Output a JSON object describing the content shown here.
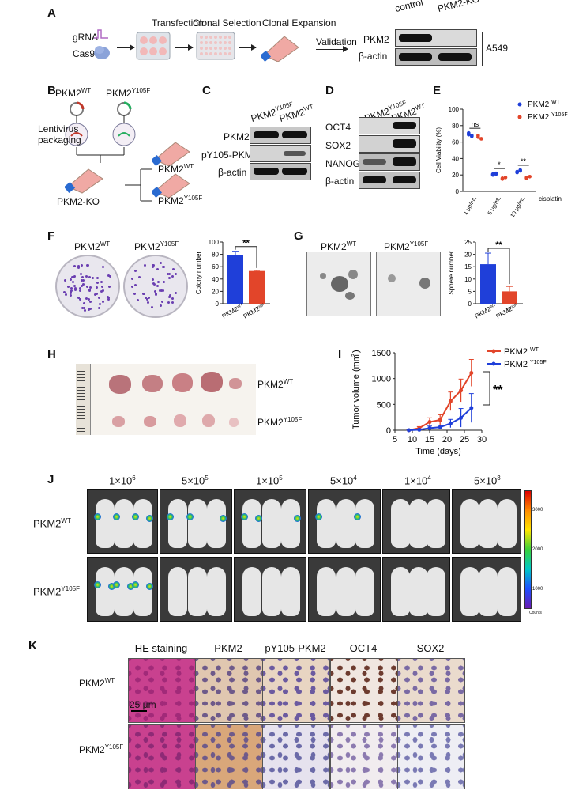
{
  "panels": {
    "A": "A",
    "B": "B",
    "C": "C",
    "D": "D",
    "E": "E",
    "F": "F",
    "G": "G",
    "H": "H",
    "I": "I",
    "J": "J",
    "K": "K"
  },
  "panel_a": {
    "gRNA": "gRNA",
    "cas9": "Cas9",
    "steps": [
      "Transfection",
      "Clonal Selection",
      "Clonal Expansion"
    ],
    "validation": "Validation",
    "lanes": [
      "control",
      "PKM2-KO"
    ],
    "rows": [
      "PKM2",
      "β-actin"
    ],
    "cell_line": "A549"
  },
  "panel_b": {
    "wt": "PKM2",
    "wt_sup": "WT",
    "mut": "PKM2",
    "mut_sup": "Y105F",
    "lentivirus": "Lentivirus",
    "packaging": "packaging",
    "ko": "PKM2-KO"
  },
  "panel_c": {
    "lanes": [
      "PKM2",
      "PKM2"
    ],
    "lane_sups": [
      "Y105F",
      "WT"
    ],
    "rows": [
      "PKM2",
      "pY105-PKM2",
      "β-actin"
    ]
  },
  "panel_d": {
    "lanes": [
      "PKM2",
      "PKM2"
    ],
    "lane_sups": [
      "Y105F",
      "WT"
    ],
    "rows": [
      "OCT4",
      "SOX2",
      "NANOG",
      "β-actin"
    ]
  },
  "panel_f": {
    "wt": "PKM2",
    "wt_sup": "WT",
    "mut": "PKM2",
    "mut_sup": "Y105F",
    "sig": "**"
  },
  "panel_g": {
    "wt": "PKM2",
    "wt_sup": "WT",
    "mut": "PKM2",
    "mut_sup": "Y105F",
    "sig": "**"
  },
  "panel_h": {
    "wt": "PKM2",
    "wt_sup": "WT",
    "mut": "PKM2",
    "mut_sup": "Y105F"
  },
  "panel_i": {
    "sig": "**"
  },
  "panel_j": {
    "doses": [
      "1×10",
      "5×10",
      "1×10",
      "5×10",
      "1×10",
      "5×10"
    ],
    "dose_exps": [
      "6",
      "5",
      "5",
      "4",
      "4",
      "3"
    ],
    "wt": "PKM2",
    "wt_sup": "WT",
    "mut": "PKM2",
    "mut_sup": "Y105F",
    "scale": [
      "3000",
      "2000",
      "1000"
    ],
    "scale_unit": "Counts"
  },
  "panel_k": {
    "columns": [
      "HE staining",
      "PKM2",
      "pY105-PKM2",
      "OCT4",
      "SOX2"
    ],
    "wt": "PKM2",
    "wt_sup": "WT",
    "mut": "PKM2",
    "mut_sup": "Y105F",
    "scalebar": "25 μm"
  },
  "chart_data": [
    {
      "panel": "E",
      "type": "scatter",
      "ylabel": "Cell Viability (%)",
      "ylim": [
        0,
        100
      ],
      "yticks": [
        0,
        20,
        40,
        60,
        80,
        100
      ],
      "categories": [
        "1 μg/mL",
        "5 μg/mL",
        "10 μg/mL"
      ],
      "xsuffix": "cisplatin",
      "series": [
        {
          "name": "PKM2",
          "name_sup": "WT",
          "color": "#1f3fd9",
          "values": [
            [
              69,
              67,
              71,
              68
            ],
            [
              21,
              22,
              20,
              21
            ],
            [
              23,
              25,
              24,
              26
            ]
          ]
        },
        {
          "name": "PKM2",
          "name_sup": "Y105F",
          "color": "#e2452a",
          "values": [
            [
              66,
              64,
              68
            ],
            [
              16,
              17,
              15
            ],
            [
              17,
              18,
              16
            ]
          ]
        }
      ],
      "annotations": [
        "ns",
        "*",
        "**"
      ]
    },
    {
      "panel": "F",
      "type": "bar",
      "ylabel": "Colony number",
      "ylim": [
        0,
        100
      ],
      "yticks": [
        0,
        20,
        40,
        60,
        80,
        100
      ],
      "categories": [
        "PKM2",
        "PKM2"
      ],
      "category_sups": [
        "WT",
        "Y105F"
      ],
      "values": [
        79,
        53
      ],
      "errors": [
        6,
        1
      ],
      "colors": [
        "#1f3fd9",
        "#e2452a"
      ]
    },
    {
      "panel": "G",
      "type": "bar",
      "ylabel": "Sphere number",
      "ylim": [
        0,
        25
      ],
      "yticks": [
        0,
        5,
        10,
        15,
        20,
        25
      ],
      "categories": [
        "PKM2",
        "PKM2"
      ],
      "category_sups": [
        "WT",
        "Y105F"
      ],
      "values": [
        16,
        5
      ],
      "errors": [
        4.5,
        2
      ],
      "colors": [
        "#1f3fd9",
        "#e2452a"
      ]
    },
    {
      "panel": "I",
      "type": "line",
      "xlabel": "Time (days)",
      "ylabel": "Tumor volume (mm",
      "ylabel_sup": "3",
      "ylabel_end": ")",
      "xlim": [
        5,
        30
      ],
      "xticks": [
        5,
        10,
        15,
        20,
        25,
        30
      ],
      "ylim": [
        0,
        1500
      ],
      "yticks": [
        0,
        500,
        1000,
        1500
      ],
      "x": [
        9,
        12,
        15,
        18,
        21,
        24,
        27
      ],
      "series": [
        {
          "name": "PKM2",
          "name_sup": "WT",
          "color": "#e2452a",
          "values": [
            0,
            40,
            160,
            200,
            560,
            770,
            1110
          ],
          "errors": [
            10,
            30,
            80,
            100,
            180,
            220,
            260
          ]
        },
        {
          "name": "PKM2",
          "name_sup": "Y105F",
          "color": "#1f3fd9",
          "values": [
            0,
            10,
            40,
            60,
            130,
            240,
            430
          ],
          "errors": [
            5,
            15,
            40,
            40,
            80,
            180,
            280
          ]
        }
      ]
    }
  ]
}
